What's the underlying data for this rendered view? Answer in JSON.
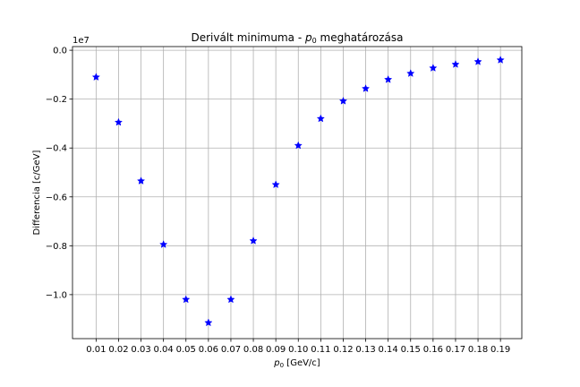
{
  "chart_data": {
    "type": "scatter",
    "title": "Derivált minimuma - ",
    "title_symbol": "p",
    "title_symbol_sub": "0",
    "title_suffix": " meghatározása",
    "xlabel_symbol": "p",
    "xlabel_symbol_sub": "0",
    "xlabel_suffix": " [GeV/c]",
    "ylabel": "Differencia [c/GeV]",
    "y_offset_label": "1e7",
    "y_scale": 10000000,
    "xlim": [
      -0.0005,
      0.1995
    ],
    "ylim": [
      -11800000,
      150000
    ],
    "x_ticks": [
      0.01,
      0.02,
      0.03,
      0.04,
      0.05,
      0.06,
      0.07,
      0.08,
      0.09,
      0.1,
      0.11,
      0.12,
      0.13,
      0.14,
      0.15,
      0.16,
      0.17,
      0.18,
      0.19
    ],
    "x_tick_labels": [
      "0.01",
      "0.02",
      "0.03",
      "0.04",
      "0.05",
      "0.06",
      "0.07",
      "0.08",
      "0.09",
      "0.10",
      "0.11",
      "0.12",
      "0.13",
      "0.14",
      "0.15",
      "0.16",
      "0.17",
      "0.18",
      "0.19"
    ],
    "y_ticks": [
      0,
      -2000000,
      -4000000,
      -6000000,
      -8000000,
      -10000000
    ],
    "y_tick_labels": [
      "0.0",
      "−0.2",
      "−0.4",
      "−0.6",
      "−0.8",
      "−1.0"
    ],
    "grid": true,
    "marker": "star",
    "marker_color": "#0000ff",
    "series": [
      {
        "x": [
          0.01,
          0.02,
          0.03,
          0.04,
          0.05,
          0.06,
          0.07,
          0.08,
          0.09,
          0.1,
          0.11,
          0.12,
          0.13,
          0.14,
          0.15,
          0.16,
          0.17,
          0.18,
          0.19
        ],
        "values": [
          -1100000,
          -2950000,
          -5350000,
          -7950000,
          -10200000,
          -11150000,
          -10200000,
          -7800000,
          -5500000,
          -3900000,
          -2800000,
          -2080000,
          -1570000,
          -1200000,
          -950000,
          -730000,
          -580000,
          -470000,
          -400000
        ]
      }
    ]
  }
}
